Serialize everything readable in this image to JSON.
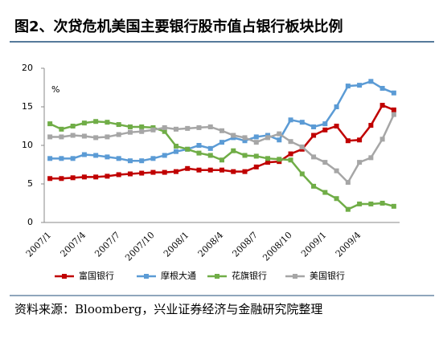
{
  "chart_data": {
    "type": "line",
    "title": "图2、次贷危机美国主要银行股市值占银行板块比例",
    "unit_label": "%",
    "source": "资料来源：Bloomberg，兴业证券经济与金融研究院整理",
    "categories": [
      "2007/1",
      null,
      null,
      "2007/4",
      null,
      null,
      "2007/7",
      null,
      null,
      "2007/10",
      null,
      null,
      "2008/1",
      null,
      null,
      "2008/4",
      null,
      null,
      "2008/7",
      null,
      null,
      "2008/10",
      null,
      null,
      "2009/1",
      null,
      null,
      "2009/4",
      null,
      null,
      null
    ],
    "series": [
      {
        "name": "富国银行",
        "color": "#c00000",
        "values": [
          5.7,
          5.7,
          5.8,
          5.9,
          5.9,
          6.0,
          6.2,
          6.3,
          6.4,
          6.5,
          6.5,
          6.6,
          7.0,
          6.8,
          6.8,
          6.8,
          6.6,
          6.6,
          7.2,
          7.8,
          7.9,
          8.9,
          9.5,
          11.3,
          12.0,
          12.5,
          10.6,
          10.7,
          12.6,
          15.2,
          14.6
        ]
      },
      {
        "name": "摩根大通",
        "color": "#5b9bd5",
        "values": [
          8.3,
          8.3,
          8.3,
          8.8,
          8.7,
          8.5,
          8.3,
          8.0,
          8.0,
          8.3,
          8.7,
          9.2,
          9.5,
          10.0,
          9.6,
          10.4,
          11.0,
          10.6,
          11.1,
          11.3,
          10.7,
          13.3,
          13.0,
          12.4,
          12.8,
          15.0,
          17.7,
          17.8,
          18.3,
          17.4,
          16.8
        ]
      },
      {
        "name": "花旗银行",
        "color": "#70ad47",
        "values": [
          12.8,
          12.1,
          12.5,
          12.9,
          13.1,
          13.0,
          12.7,
          12.4,
          12.4,
          12.3,
          11.8,
          9.9,
          9.5,
          9.0,
          8.7,
          8.1,
          9.3,
          8.7,
          8.6,
          8.3,
          8.2,
          8.1,
          6.3,
          4.7,
          3.9,
          3.1,
          1.7,
          2.4,
          2.4,
          2.5,
          2.1
        ]
      },
      {
        "name": "美国银行",
        "color": "#a6a6a6",
        "values": [
          11.1,
          11.1,
          11.3,
          11.2,
          11.0,
          11.1,
          11.4,
          11.7,
          11.8,
          12.0,
          12.3,
          12.1,
          12.2,
          12.3,
          12.4,
          11.9,
          11.3,
          11.0,
          10.4,
          11.0,
          11.5,
          10.5,
          9.8,
          8.5,
          7.8,
          6.7,
          5.2,
          7.8,
          8.4,
          10.8,
          14.0
        ]
      }
    ],
    "ylim": [
      0,
      20
    ],
    "yticks": [
      0,
      5,
      10,
      15,
      20
    ],
    "grid": false,
    "legend": "bottom"
  }
}
